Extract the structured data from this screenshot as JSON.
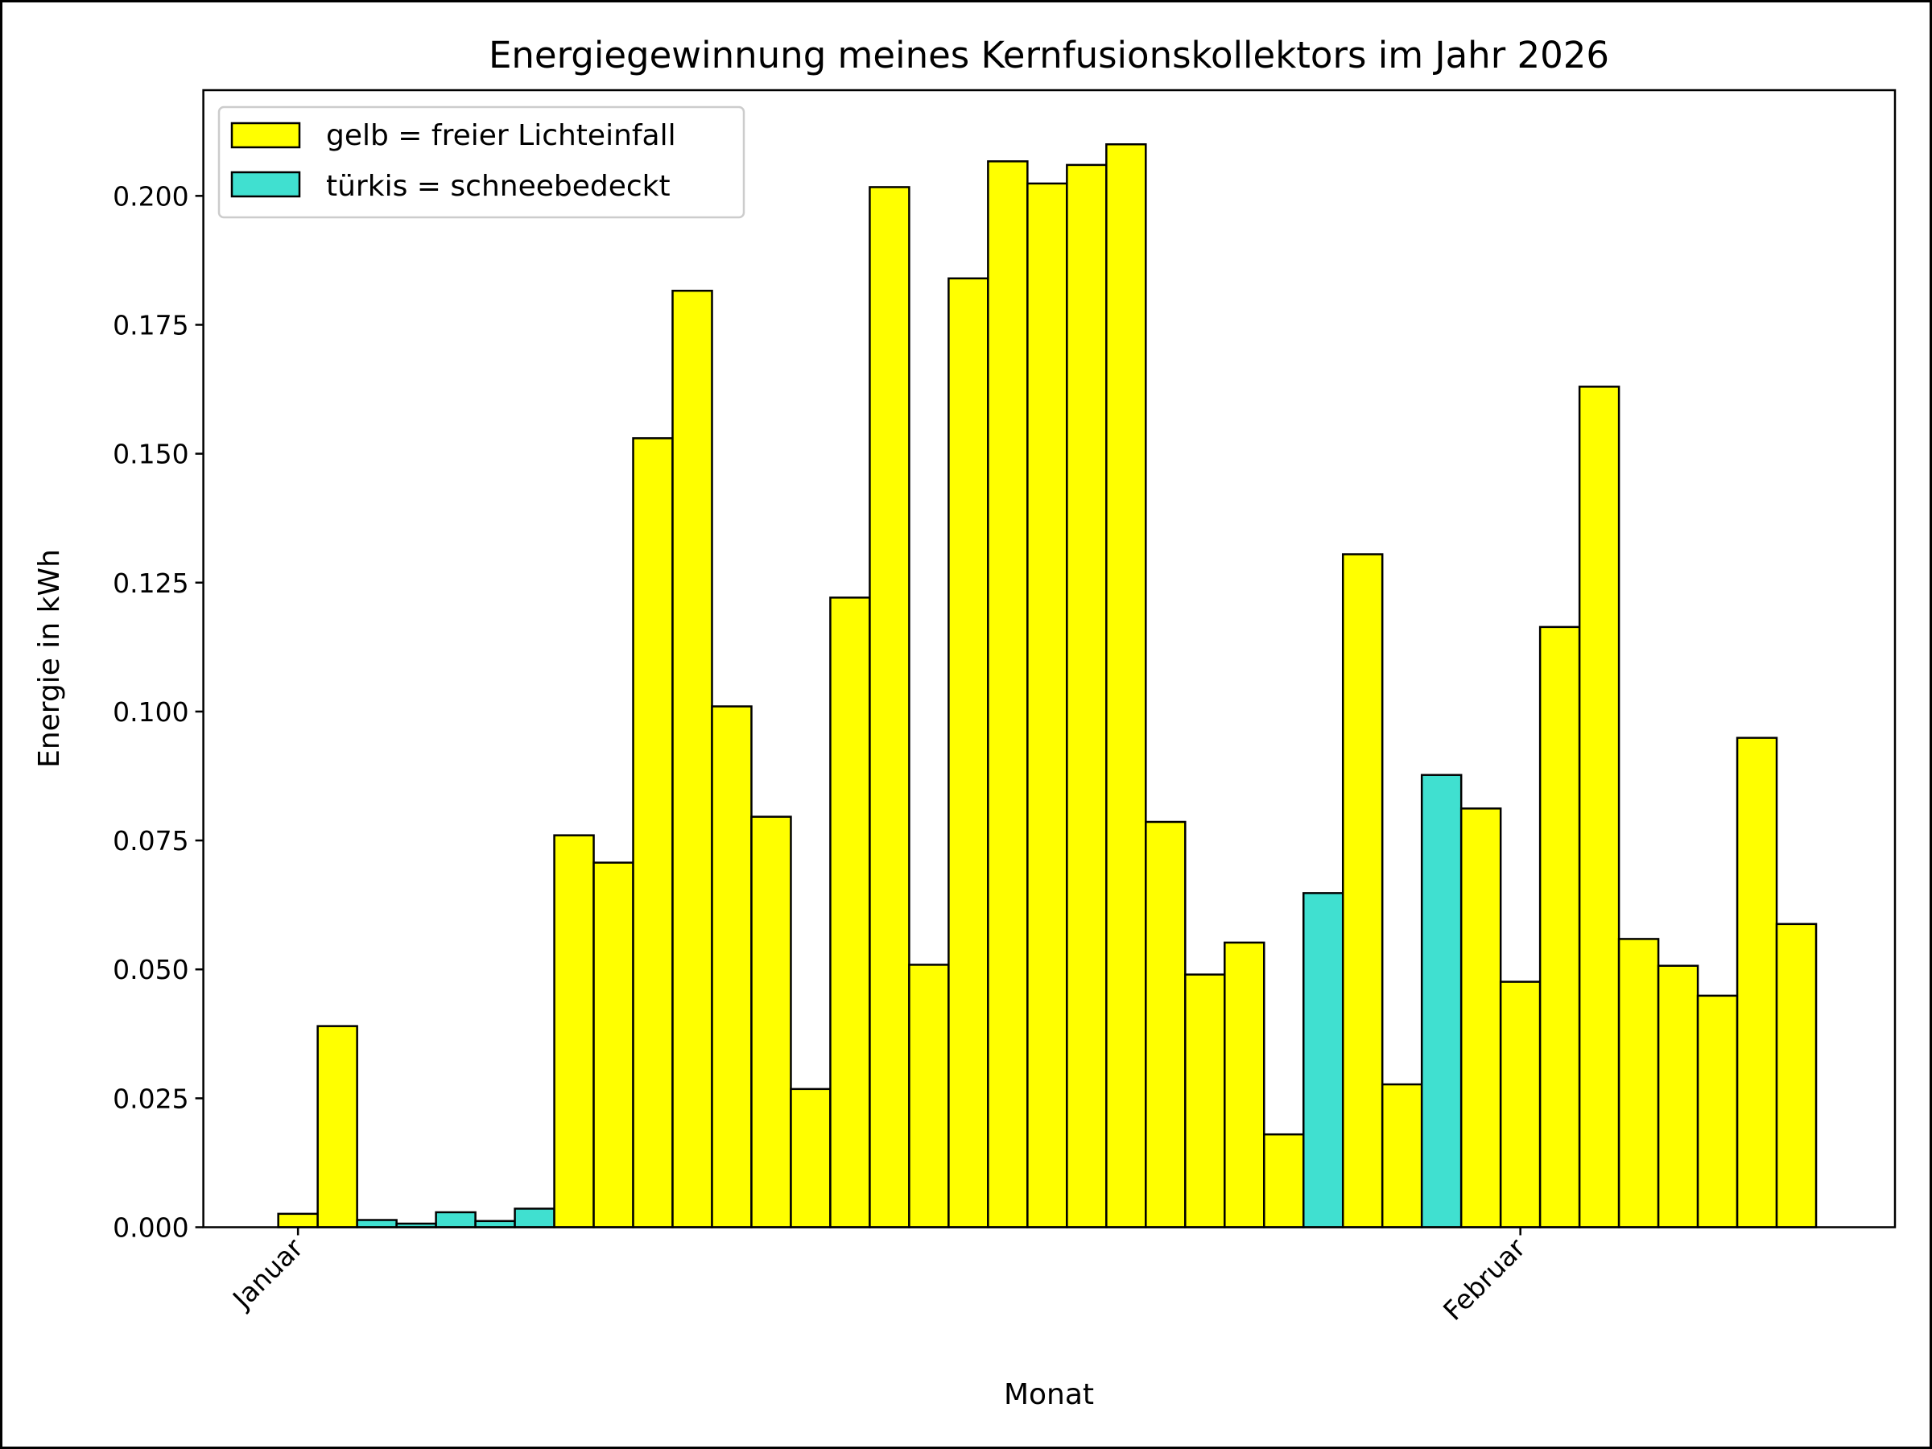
{
  "chart_data": {
    "type": "bar",
    "title": "Energiegewinnung meines Kernfusionskollektors im Jahr 2026",
    "xlabel": "Monat",
    "ylabel": "Energie in kWh",
    "ylim": [
      0,
      0.2205
    ],
    "xlim": [
      -2.4,
      40.5
    ],
    "grid": false,
    "legend_position": "top-left",
    "legend": [
      {
        "label": "gelb = freier Lichteinfall",
        "color": "#ffff00"
      },
      {
        "label": "türkis = schneebedeckt",
        "color": "#40e0d0"
      }
    ],
    "x_ticks": [
      {
        "day": 0,
        "label": "Januar"
      },
      {
        "day": 31,
        "label": "Februar"
      }
    ],
    "y_ticks": [
      "0.000",
      "0.025",
      "0.050",
      "0.075",
      "0.100",
      "0.125",
      "0.150",
      "0.175",
      "0.200"
    ],
    "y_tick_values": [
      0,
      0.025,
      0.05,
      0.075,
      0.1,
      0.125,
      0.15,
      0.175,
      0.2
    ],
    "values": [
      0.0026,
      0.039,
      0.0014,
      0.0007,
      0.0029,
      0.0012,
      0.0036,
      0.076,
      0.0707,
      0.153,
      0.1816,
      0.101,
      0.0796,
      0.0268,
      0.1221,
      0.2017,
      0.0509,
      0.184,
      0.2067,
      0.2024,
      0.206,
      0.21,
      0.0786,
      0.049,
      0.0552,
      0.018,
      0.0648,
      0.1305,
      0.0277,
      0.0877,
      0.0812,
      0.0476,
      0.1164,
      0.163,
      0.0559,
      0.0507,
      0.0449,
      0.0949,
      0.0588
    ],
    "snow": [
      false,
      false,
      true,
      true,
      true,
      true,
      true,
      false,
      false,
      false,
      false,
      false,
      false,
      false,
      false,
      false,
      false,
      false,
      false,
      false,
      false,
      false,
      false,
      false,
      false,
      false,
      true,
      false,
      false,
      true,
      false,
      false,
      false,
      false,
      false,
      false,
      false,
      false,
      false
    ]
  }
}
